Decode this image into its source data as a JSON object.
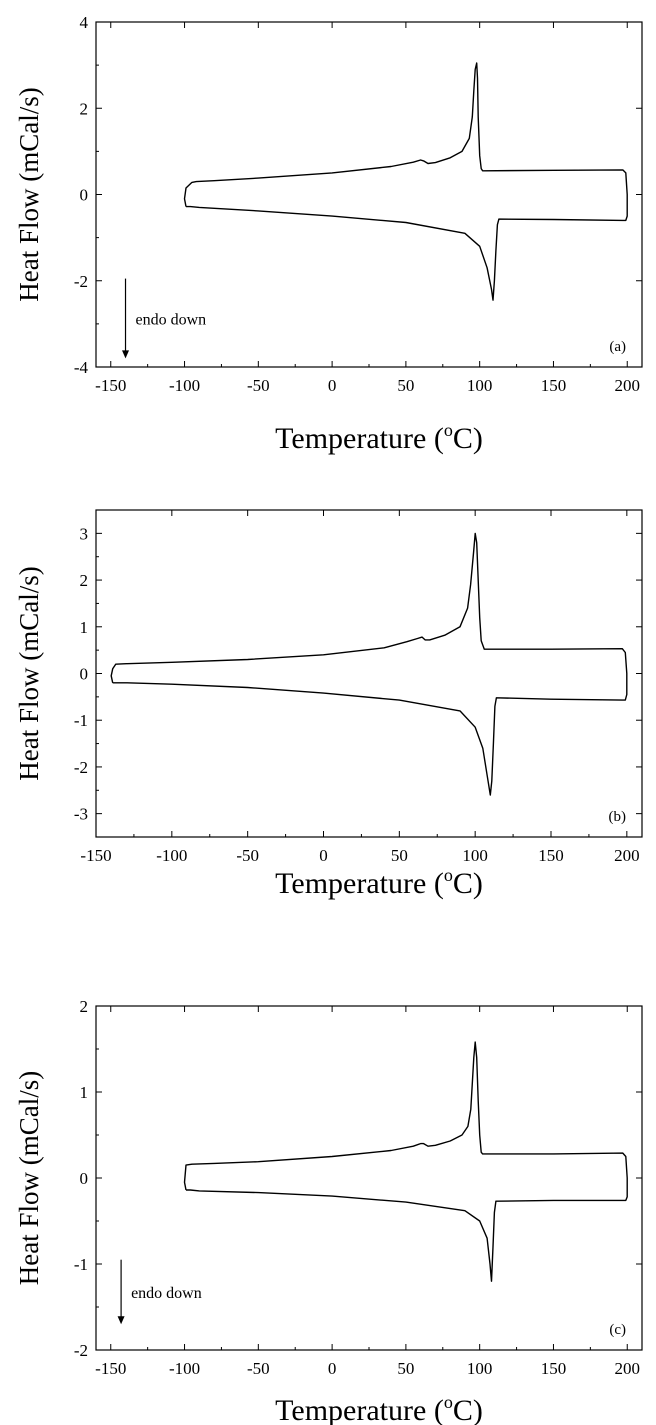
{
  "chart_data": [
    {
      "type": "line",
      "panel_label": "(a)",
      "xlabel": "Temperature (",
      "xlabel_sup": "o",
      "xlabel_end": "C)",
      "ylabel": "Heat Flow (mCal/s)",
      "xlim": [
        -160,
        210
      ],
      "ylim": [
        -4,
        4
      ],
      "xticks": [
        -150,
        -100,
        -50,
        0,
        50,
        100,
        150,
        200
      ],
      "yticks": [
        -4,
        -2,
        0,
        2,
        4
      ],
      "annotation": "endo down",
      "series": [
        {
          "x": [
            -99,
            -100,
            -99,
            -95,
            -92,
            -80,
            -50,
            0,
            40,
            55,
            60,
            62,
            65,
            70,
            80,
            88,
            93,
            95,
            96,
            97,
            98,
            98.5,
            99,
            100,
            101,
            102,
            103,
            150,
            197,
            199,
            200,
            200,
            199,
            197,
            150,
            113,
            112,
            111,
            110,
            109,
            108,
            105,
            100,
            90,
            50,
            0,
            -50,
            -90,
            -96,
            -99
          ],
          "y": [
            -0.28,
            -0.1,
            0.15,
            0.28,
            0.3,
            0.32,
            0.38,
            0.5,
            0.65,
            0.75,
            0.8,
            0.78,
            0.72,
            0.74,
            0.85,
            1.0,
            1.3,
            1.8,
            2.4,
            2.9,
            3.05,
            2.7,
            1.8,
            0.9,
            0.6,
            0.55,
            0.55,
            0.56,
            0.57,
            0.5,
            0,
            -0.5,
            -0.6,
            -0.6,
            -0.58,
            -0.57,
            -0.7,
            -1.3,
            -2.0,
            -2.45,
            -2.2,
            -1.7,
            -1.2,
            -0.9,
            -0.65,
            -0.5,
            -0.38,
            -0.3,
            -0.28,
            -0.28
          ]
        }
      ],
      "arrow_x": -140,
      "arrow_y_from": -1.95,
      "arrow_y_to": -3.8
    },
    {
      "type": "line",
      "panel_label": "(b)",
      "xlabel": "Temperature (",
      "xlabel_sup": "o",
      "xlabel_end": "C)",
      "ylabel": "Heat Flow (mCal/s)",
      "xlim": [
        -150,
        210
      ],
      "ylim": [
        -3.5,
        3.5
      ],
      "xticks": [
        -150,
        -100,
        -50,
        0,
        50,
        100,
        150,
        200
      ],
      "yticks": [
        -3,
        -2,
        -1,
        0,
        1,
        2,
        3
      ],
      "series": [
        {
          "x": [
            -139,
            -140,
            -139,
            -137,
            -130,
            -100,
            -50,
            0,
            40,
            55,
            62,
            65,
            67,
            70,
            80,
            90,
            95,
            97,
            99,
            100,
            101,
            102,
            103,
            104,
            106,
            150,
            197,
            199,
            200,
            200,
            199,
            197,
            150,
            114,
            113,
            112,
            111,
            110,
            108,
            105,
            100,
            90,
            50,
            0,
            -50,
            -100,
            -130,
            -137,
            -139
          ],
          "y": [
            -0.2,
            -0.05,
            0.1,
            0.2,
            0.21,
            0.24,
            0.3,
            0.4,
            0.55,
            0.68,
            0.75,
            0.78,
            0.72,
            0.72,
            0.82,
            1.0,
            1.4,
            1.9,
            2.6,
            3.0,
            2.8,
            2.0,
            1.2,
            0.7,
            0.52,
            0.52,
            0.53,
            0.45,
            0,
            -0.45,
            -0.57,
            -0.57,
            -0.55,
            -0.52,
            -0.7,
            -1.5,
            -2.3,
            -2.6,
            -2.2,
            -1.6,
            -1.15,
            -0.8,
            -0.57,
            -0.42,
            -0.3,
            -0.23,
            -0.2,
            -0.2,
            -0.2
          ]
        }
      ]
    },
    {
      "type": "line",
      "panel_label": "(c)",
      "xlabel": "Temperature (",
      "xlabel_sup": "o",
      "xlabel_end": "C)",
      "ylabel": "Heat Flow (mCal/s)",
      "xlim": [
        -160,
        210
      ],
      "ylim": [
        -2,
        2
      ],
      "xticks": [
        -150,
        -100,
        -50,
        0,
        50,
        100,
        150,
        200
      ],
      "yticks": [
        -2,
        -1,
        0,
        1,
        2
      ],
      "annotation": "endo down",
      "series": [
        {
          "x": [
            -99,
            -100,
            -99,
            -95,
            -80,
            -50,
            0,
            40,
            55,
            60,
            62,
            65,
            70,
            80,
            88,
            92,
            94,
            95,
            96,
            97,
            98,
            99,
            100,
            101,
            102,
            150,
            197,
            199,
            200,
            200,
            199,
            197,
            150,
            111,
            110,
            109,
            108,
            107,
            105,
            100,
            90,
            50,
            0,
            -50,
            -90,
            -96,
            -99
          ],
          "y": [
            -0.14,
            -0.05,
            0.15,
            0.16,
            0.17,
            0.19,
            0.25,
            0.32,
            0.37,
            0.4,
            0.4,
            0.37,
            0.38,
            0.43,
            0.5,
            0.6,
            0.8,
            1.1,
            1.4,
            1.58,
            1.4,
            0.9,
            0.5,
            0.3,
            0.28,
            0.28,
            0.29,
            0.25,
            0,
            -0.22,
            -0.26,
            -0.26,
            -0.26,
            -0.27,
            -0.4,
            -0.8,
            -1.2,
            -1.0,
            -0.7,
            -0.5,
            -0.38,
            -0.28,
            -0.21,
            -0.17,
            -0.15,
            -0.14,
            -0.14
          ]
        }
      ],
      "arrow_x": -143,
      "arrow_y_from": -0.95,
      "arrow_y_to": -1.7
    }
  ]
}
